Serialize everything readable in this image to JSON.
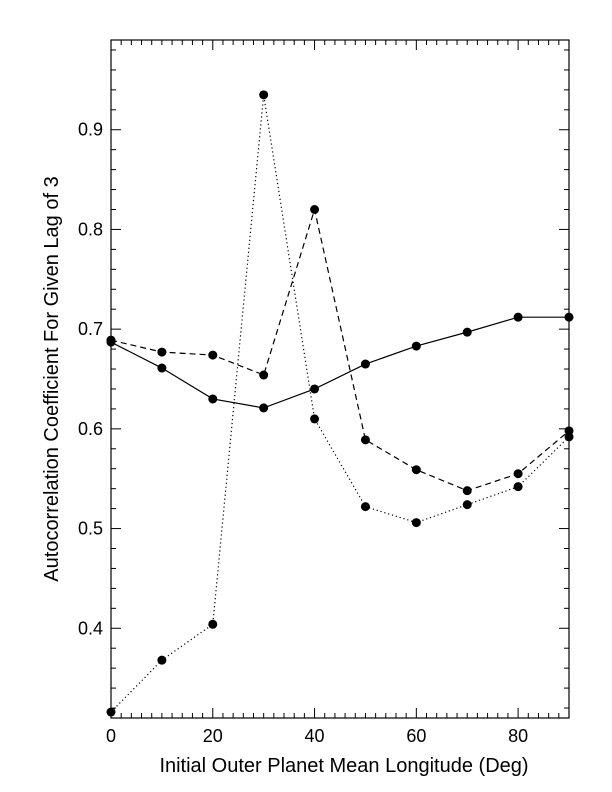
{
  "chart_data": {
    "type": "line",
    "title": "",
    "xlabel": "Initial Outer Planet Mean Longitude (Deg)",
    "ylabel": "Autocorrelation Coefficient For Given Lag of 3",
    "xlim": [
      0,
      90
    ],
    "ylim": [
      0.31,
      0.99
    ],
    "x_ticks": [
      0,
      20,
      40,
      60,
      80
    ],
    "x_tick_labels": [
      "0",
      "20",
      "40",
      "60",
      "80"
    ],
    "y_ticks": [
      0.4,
      0.5,
      0.6,
      0.7,
      0.8,
      0.9
    ],
    "y_tick_labels": [
      "0.4",
      "0.5",
      "0.6",
      "0.7",
      "0.8",
      "0.9"
    ],
    "grid": false,
    "legend": "none",
    "x": [
      0,
      10,
      20,
      30,
      40,
      50,
      60,
      70,
      80,
      90
    ],
    "series": [
      {
        "style": "solid",
        "values": [
          0.687,
          0.661,
          0.63,
          0.621,
          0.64,
          0.665,
          0.683,
          0.697,
          0.712,
          0.712
        ]
      },
      {
        "style": "dashed",
        "values": [
          0.689,
          0.677,
          0.674,
          0.654,
          0.82,
          0.589,
          0.559,
          0.538,
          0.555,
          0.598
        ]
      },
      {
        "style": "dotted",
        "values": [
          0.316,
          0.368,
          0.404,
          0.935,
          0.61,
          0.522,
          0.506,
          0.524,
          0.542,
          0.592
        ]
      }
    ],
    "colors": {
      "line": "#000000",
      "marker": "#000000"
    }
  }
}
